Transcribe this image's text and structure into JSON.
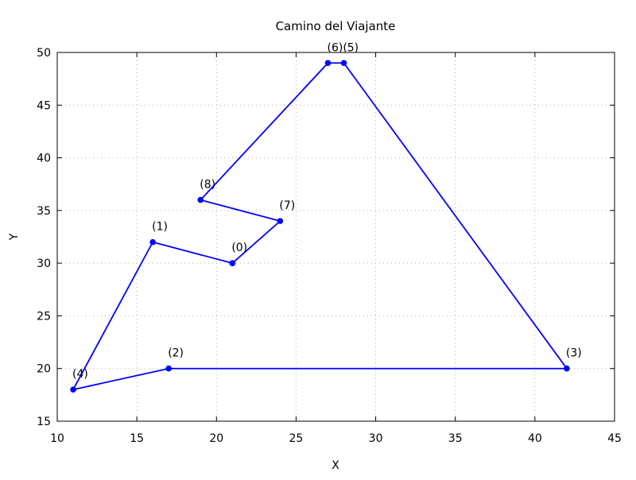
{
  "chart_data": {
    "type": "line",
    "title": "Camino del Viajante",
    "xlabel": "X",
    "ylabel": "Y",
    "xlim": [
      10,
      45
    ],
    "ylim": [
      15,
      50
    ],
    "x_ticks": [
      10,
      15,
      20,
      25,
      30,
      35,
      40,
      45
    ],
    "y_ticks": [
      15,
      20,
      25,
      30,
      35,
      40,
      45,
      50
    ],
    "grid": true,
    "line_color": "#0000ff",
    "series": [
      {
        "values": [
          {
            "x": 21,
            "y": 30
          },
          {
            "x": 16,
            "y": 32
          },
          {
            "x": 11,
            "y": 18
          },
          {
            "x": 17,
            "y": 20
          },
          {
            "x": 42,
            "y": 20
          },
          {
            "x": 28,
            "y": 49
          },
          {
            "x": 27,
            "y": 49
          },
          {
            "x": 19,
            "y": 36
          },
          {
            "x": 24,
            "y": 34
          },
          {
            "x": 21,
            "y": 30
          }
        ]
      }
    ],
    "point_labels": [
      {
        "text": "(0)",
        "x": 21,
        "y": 30,
        "anchor": "start"
      },
      {
        "text": "(1)",
        "x": 16,
        "y": 32,
        "anchor": "start"
      },
      {
        "text": "(4)",
        "x": 11,
        "y": 18,
        "anchor": "start"
      },
      {
        "text": "(2)",
        "x": 17,
        "y": 20,
        "anchor": "start"
      },
      {
        "text": "(3)",
        "x": 42,
        "y": 20,
        "anchor": "start"
      },
      {
        "text": "(6)(5)",
        "x": 27,
        "y": 49,
        "anchor": "start"
      },
      {
        "text": "(8)",
        "x": 19,
        "y": 36,
        "anchor": "start"
      },
      {
        "text": "(7)",
        "x": 24,
        "y": 34,
        "anchor": "start"
      }
    ]
  }
}
